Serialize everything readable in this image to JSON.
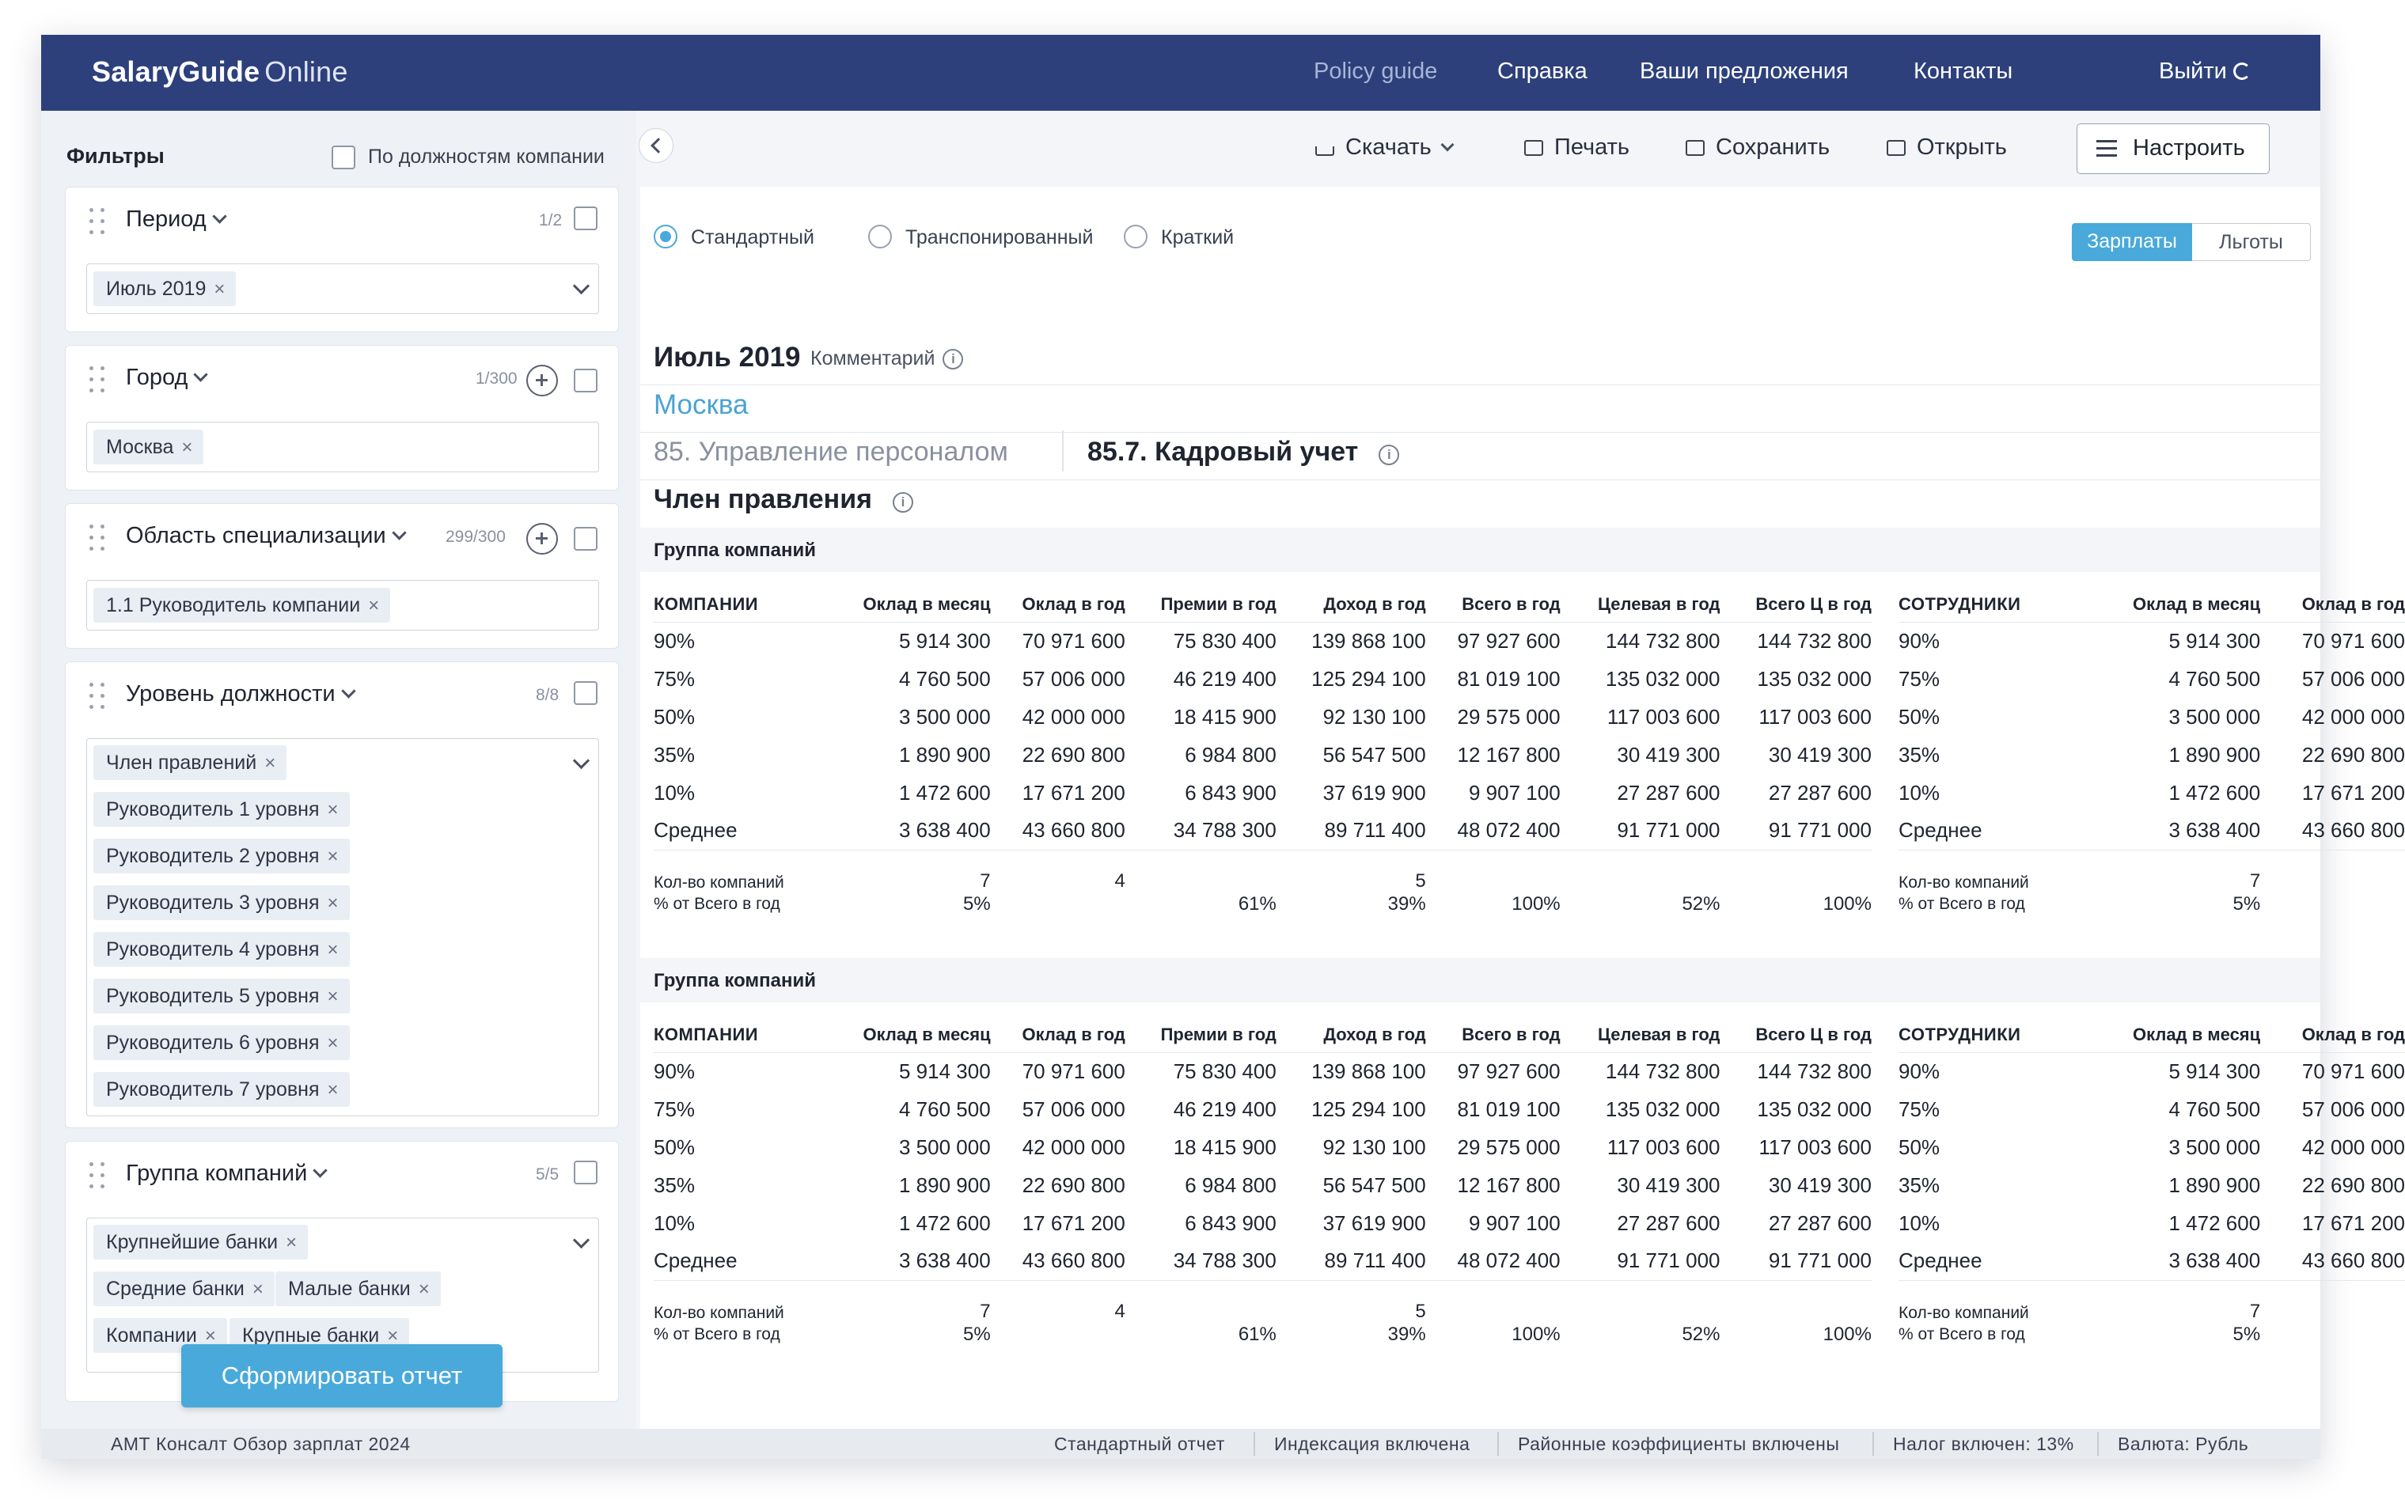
{
  "header": {
    "logo_bold": "SalaryGuide",
    "logo_light": "Online",
    "nav": [
      "Policy guide",
      "Справка",
      "Ваши предложения",
      "Контакты"
    ],
    "logout": "Выйти"
  },
  "toolbar": {
    "download": "Скачать",
    "print": "Печать",
    "save": "Сохранить",
    "open": "Открыть",
    "setup": "Настроить"
  },
  "sidebar": {
    "title": "Фильтры",
    "by_company_positions": "По должностям компании",
    "filters": [
      {
        "title": "Период",
        "count": "1/2",
        "tags": [
          "Июль 2019"
        ]
      },
      {
        "title": "Город",
        "count": "1/300",
        "tags": [
          "Москва"
        ]
      },
      {
        "title": "Область специализации",
        "count": "299/300",
        "tags": [
          "1.1 Руководитель компании"
        ]
      },
      {
        "title": "Уровень должности",
        "count": "8/8",
        "tags": [
          "Член правлений",
          "Руководитель 1 уровня",
          "Руководитель 2 уровня",
          "Руководитель 3 уровня",
          "Руководитель 4 уровня",
          "Руководитель 5 уровня",
          "Руководитель 6 уровня",
          "Руководитель 7 уровня"
        ]
      },
      {
        "title": "Группа компаний",
        "count": "5/5",
        "tags": [
          "Крупнейшие банки",
          "Средние банки",
          "Малые банки",
          "Компании",
          "Крупные банки"
        ]
      }
    ],
    "generate_button": "Сформировать отчет"
  },
  "report": {
    "view_modes": [
      "Стандартный",
      "Транспонированный",
      "Краткий"
    ],
    "selected_view": "Стандартный",
    "tabs": [
      "Зарплаты",
      "Льготы"
    ],
    "active_tab": "Зарплаты",
    "period": "Июль 2019",
    "comment_label": "Комментарий",
    "city": "Москва",
    "spec_area": "85. Управление персоналом",
    "spec_sub": "85.7. Кадровый учет",
    "position": "Член правления",
    "groups": [
      {
        "title": "Группа компаний",
        "company_headers": [
          "КОМПАНИИ",
          "Оклад в месяц",
          "Оклад в год",
          "Премии в год",
          "Доход в год",
          "Всего в год",
          "Целевая в год",
          "Всего Ц в год"
        ],
        "company_rows": [
          [
            "90%",
            "5 914 300",
            "70 971 600",
            "75 830 400",
            "139 868 100",
            "97 927 600",
            "144 732 800",
            "144 732 800"
          ],
          [
            "75%",
            "4 760 500",
            "57 006 000",
            "46 219 400",
            "125 294 100",
            "81 019 100",
            "135 032 000",
            "135 032 000"
          ],
          [
            "50%",
            "3 500 000",
            "42 000 000",
            "18 415 900",
            "92 130 100",
            "29 575 000",
            "117 003 600",
            "117 003 600"
          ],
          [
            "35%",
            "1 890 900",
            "22 690 800",
            "6 984 800",
            "56 547 500",
            "12 167 800",
            "30 419 300",
            "30 419 300"
          ],
          [
            "10%",
            "1 472 600",
            "17 671 200",
            "6 843 900",
            "37 619 900",
            "9 907 100",
            "27 287 600",
            "27 287 600"
          ],
          [
            "Среднее",
            "3 638 400",
            "43 660 800",
            "34 788 300",
            "89 711 400",
            "48 072 400",
            "91 771 000",
            "91 771 000"
          ]
        ],
        "company_count": [
          "Кол-во компаний",
          "7",
          "4",
          "",
          "5",
          "",
          "",
          ""
        ],
        "company_pct": [
          "% от Всего в год",
          "5%",
          "",
          "61%",
          "39%",
          "100%",
          "52%",
          "100%"
        ],
        "employee_headers": [
          "СОТРУДНИКИ",
          "Оклад в месяц",
          "Оклад в год"
        ],
        "employee_rows": [
          [
            "90%",
            "5 914 300",
            "70 971 600"
          ],
          [
            "75%",
            "4 760 500",
            "57 006 000"
          ],
          [
            "50%",
            "3 500 000",
            "42 000 000"
          ],
          [
            "35%",
            "1 890 900",
            "22 690 800"
          ],
          [
            "10%",
            "1 472 600",
            "17 671 200"
          ],
          [
            "Среднее",
            "3 638 400",
            "43 660 800"
          ]
        ],
        "employee_count": [
          "Кол-во компаний",
          "7",
          ""
        ],
        "employee_pct": [
          "% от Всего в год",
          "5%",
          ""
        ]
      },
      {
        "title": "Группа компаний",
        "company_headers": [
          "КОМПАНИИ",
          "Оклад в месяц",
          "Оклад в год",
          "Премии в год",
          "Доход в год",
          "Всего в год",
          "Целевая в год",
          "Всего Ц в год"
        ],
        "company_rows": [
          [
            "90%",
            "5 914 300",
            "70 971 600",
            "75 830 400",
            "139 868 100",
            "97 927 600",
            "144 732 800",
            "144 732 800"
          ],
          [
            "75%",
            "4 760 500",
            "57 006 000",
            "46 219 400",
            "125 294 100",
            "81 019 100",
            "135 032 000",
            "135 032 000"
          ],
          [
            "50%",
            "3 500 000",
            "42 000 000",
            "18 415 900",
            "92 130 100",
            "29 575 000",
            "117 003 600",
            "117 003 600"
          ],
          [
            "35%",
            "1 890 900",
            "22 690 800",
            "6 984 800",
            "56 547 500",
            "12 167 800",
            "30 419 300",
            "30 419 300"
          ],
          [
            "10%",
            "1 472 600",
            "17 671 200",
            "6 843 900",
            "37 619 900",
            "9 907 100",
            "27 287 600",
            "27 287 600"
          ],
          [
            "Среднее",
            "3 638 400",
            "43 660 800",
            "34 788 300",
            "89 711 400",
            "48 072 400",
            "91 771 000",
            "91 771 000"
          ]
        ],
        "company_count": [
          "Кол-во компаний",
          "7",
          "4",
          "",
          "5",
          "",
          "",
          ""
        ],
        "company_pct": [
          "% от Всего в год",
          "5%",
          "",
          "61%",
          "39%",
          "100%",
          "52%",
          "100%"
        ],
        "employee_headers": [
          "СОТРУДНИКИ",
          "Оклад в месяц",
          "Оклад в год"
        ],
        "employee_rows": [
          [
            "90%",
            "5 914 300",
            "70 971 600"
          ],
          [
            "75%",
            "4 760 500",
            "57 006 000"
          ],
          [
            "50%",
            "3 500 000",
            "42 000 000"
          ],
          [
            "35%",
            "1 890 900",
            "22 690 800"
          ],
          [
            "10%",
            "1 472 600",
            "17 671 200"
          ],
          [
            "Среднее",
            "3 638 400",
            "43 660 800"
          ]
        ],
        "employee_count": [
          "Кол-во компаний",
          "7",
          ""
        ],
        "employee_pct": [
          "% от Всего в год",
          "5%",
          ""
        ]
      }
    ]
  },
  "status_bar": {
    "left": "АМТ Консалт Обзор зарплат 2024",
    "items": [
      "Стандартный отчет",
      "Индексация включена",
      "Районные коэффициенты включены",
      "Налог включен: 13%",
      "Валюта: Рубль"
    ]
  },
  "colors": {
    "header": "#2d407c",
    "accent": "#49a9db",
    "city": "#4aa3d3"
  }
}
